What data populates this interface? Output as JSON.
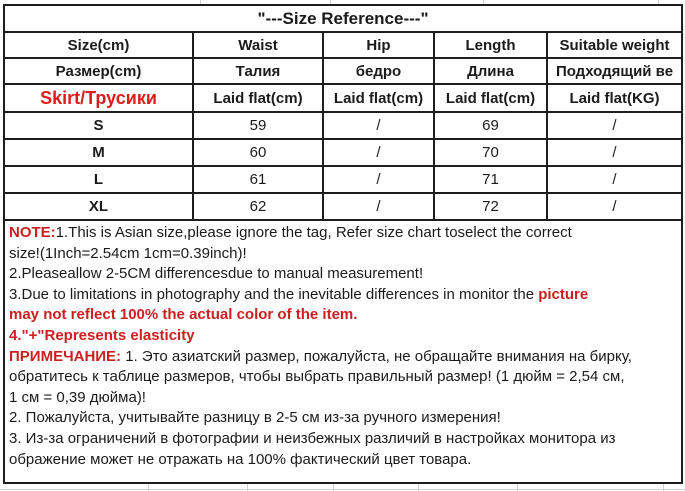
{
  "title": "\"---Size Reference---\"",
  "table": {
    "header_rows": [
      {
        "cells": [
          "Size(cm)",
          "Waist",
          "Hip",
          "Length",
          "Suitable weight"
        ]
      },
      {
        "cells": [
          "Размер(cm)",
          "Талия",
          "бедро",
          "Длина",
          "Подходящий ве"
        ]
      },
      {
        "cells": [
          "Skirt/Трусики",
          "Laid flat(cm)",
          "Laid flat(cm)",
          "Laid flat(cm)",
          "Laid flat(KG)"
        ],
        "first_cell_red": true
      }
    ],
    "data_rows": [
      {
        "cells": [
          "S",
          "59",
          "/",
          "69",
          "/"
        ]
      },
      {
        "cells": [
          "M",
          "60",
          "/",
          "70",
          "/"
        ]
      },
      {
        "cells": [
          "L",
          "61",
          "/",
          "71",
          "/"
        ]
      },
      {
        "cells": [
          "XL",
          "62",
          "/",
          "72",
          "/"
        ]
      }
    ]
  },
  "notes": {
    "lines": [
      [
        {
          "t": "NOTE:",
          "red": true
        },
        {
          "t": "1.This is Asian size,please ignore the tag, Refer size chart toselect the correct"
        }
      ],
      [
        {
          "t": "size!(1Inch=2.54cm 1cm=0.39inch)!"
        }
      ],
      [
        {
          "t": "2.Pleaseallow 2-5CM differencesdue to manual measurement!"
        }
      ],
      [
        {
          "t": "3.Due to limitations in photography and the inevitable differences in monitor the "
        },
        {
          "t": "picture",
          "red": true
        }
      ],
      [
        {
          "t": "may not reflect 100% the actual color of the item.",
          "red": true
        }
      ],
      [
        {
          "t": "4.\"+\"Represents elasticity",
          "red": true
        }
      ],
      [
        {
          "t": "ПРИМЕЧАНИЕ:",
          "red": true
        },
        {
          "t": " 1. Это азиатский размер, пожалуйста, не обращайте внимания на бирку,"
        }
      ],
      [
        {
          "t": "обратитесь к таблице размеров, чтобы выбрать правильный размер! (1 дюйм = 2,54 см,"
        }
      ],
      [
        {
          "t": "1 см = 0,39 дюйма)!"
        }
      ],
      [
        {
          "t": "2. Пожалуйста, учитывайте разницу в 2-5 см из-за ручного измерения!"
        }
      ],
      [
        {
          "t": "3. Из-за ограничений в фотографии и неизбежных различий в настройках монитора из"
        }
      ],
      [
        {
          "t": "ображение может не отражать на 100% фактический цвет товара."
        }
      ]
    ]
  },
  "colors": {
    "red": "#cc1f1f",
    "skirt_red": "#dd1c1c",
    "border": "#1d1d1d",
    "text": "#1b1b1b",
    "grid": "#d0d0d0"
  }
}
